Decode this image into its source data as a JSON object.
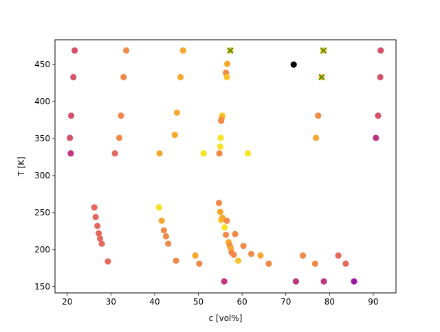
{
  "chart_data": {
    "type": "scatter",
    "title": "",
    "xlabel": "c [vol%]",
    "ylabel": "T [K]",
    "xlim": [
      17.2,
      95.2
    ],
    "ylim": [
      141.5,
      483.5
    ],
    "xticks": [
      "20",
      "30",
      "40",
      "50",
      "60",
      "70",
      "80",
      "90"
    ],
    "yticks": [
      "150",
      "200",
      "250",
      "300",
      "350",
      "400",
      "450"
    ],
    "grid": false,
    "legend": "none",
    "colors": {
      "purple": "#9c17a4",
      "magenta": "#c0357f",
      "rose": "#d5536a",
      "coral": "#e5685e",
      "orange": "#f08a48",
      "amber": "#f7a82f",
      "gold": "#fac42a",
      "yellow": "#f7e224",
      "black": "#000000",
      "cross": "#2f7d00"
    },
    "points": [
      {
        "x": 21.7,
        "y": 469,
        "color": "rose"
      },
      {
        "x": 33.5,
        "y": 469,
        "color": "orange"
      },
      {
        "x": 46.5,
        "y": 469,
        "color": "amber"
      },
      {
        "x": 57.3,
        "y": 469,
        "color": "gold"
      },
      {
        "x": 78.6,
        "y": 469,
        "color": "gold"
      },
      {
        "x": 91.7,
        "y": 469,
        "color": "rose"
      },
      {
        "x": 71.8,
        "y": 450,
        "color": "black"
      },
      {
        "x": 56.6,
        "y": 451,
        "color": "amber"
      },
      {
        "x": 21.4,
        "y": 433,
        "color": "rose"
      },
      {
        "x": 32.9,
        "y": 433,
        "color": "orange"
      },
      {
        "x": 45.9,
        "y": 433,
        "color": "amber"
      },
      {
        "x": 56.3,
        "y": 439,
        "color": "orange"
      },
      {
        "x": 56.5,
        "y": 433,
        "color": "gold"
      },
      {
        "x": 78.2,
        "y": 433,
        "color": "gold"
      },
      {
        "x": 91.6,
        "y": 433,
        "color": "rose"
      },
      {
        "x": 20.9,
        "y": 381,
        "color": "rose"
      },
      {
        "x": 32.3,
        "y": 381,
        "color": "orange"
      },
      {
        "x": 45.1,
        "y": 385,
        "color": "amber"
      },
      {
        "x": 55.5,
        "y": 381,
        "color": "gold"
      },
      {
        "x": 55.3,
        "y": 377,
        "color": "amber"
      },
      {
        "x": 55.2,
        "y": 374,
        "color": "orange"
      },
      {
        "x": 77.4,
        "y": 381,
        "color": "orange"
      },
      {
        "x": 91.1,
        "y": 381,
        "color": "rose"
      },
      {
        "x": 20.6,
        "y": 351,
        "color": "rose"
      },
      {
        "x": 31.9,
        "y": 351,
        "color": "orange"
      },
      {
        "x": 44.6,
        "y": 355,
        "color": "amber"
      },
      {
        "x": 55.1,
        "y": 351,
        "color": "yellow"
      },
      {
        "x": 55.0,
        "y": 339,
        "color": "yellow"
      },
      {
        "x": 76.9,
        "y": 351,
        "color": "amber"
      },
      {
        "x": 90.6,
        "y": 351,
        "color": "magenta"
      },
      {
        "x": 20.8,
        "y": 330,
        "color": "magenta"
      },
      {
        "x": 30.9,
        "y": 330,
        "color": "coral"
      },
      {
        "x": 41.1,
        "y": 330,
        "color": "amber"
      },
      {
        "x": 51.2,
        "y": 330,
        "color": "yellow"
      },
      {
        "x": 54.8,
        "y": 330,
        "color": "orange"
      },
      {
        "x": 61.3,
        "y": 330,
        "color": "yellow"
      },
      {
        "x": 26.2,
        "y": 257,
        "color": "coral"
      },
      {
        "x": 26.5,
        "y": 244,
        "color": "coral"
      },
      {
        "x": 26.9,
        "y": 232,
        "color": "coral"
      },
      {
        "x": 27.2,
        "y": 222,
        "color": "coral"
      },
      {
        "x": 27.5,
        "y": 215,
        "color": "coral"
      },
      {
        "x": 27.9,
        "y": 208,
        "color": "coral"
      },
      {
        "x": 29.3,
        "y": 184,
        "color": "coral"
      },
      {
        "x": 41.0,
        "y": 257,
        "color": "yellow"
      },
      {
        "x": 41.6,
        "y": 239,
        "color": "amber"
      },
      {
        "x": 42.1,
        "y": 226,
        "color": "orange"
      },
      {
        "x": 42.6,
        "y": 218,
        "color": "orange"
      },
      {
        "x": 43.1,
        "y": 208,
        "color": "orange"
      },
      {
        "x": 44.9,
        "y": 185,
        "color": "orange"
      },
      {
        "x": 49.3,
        "y": 192,
        "color": "amber"
      },
      {
        "x": 50.2,
        "y": 181,
        "color": "orange"
      },
      {
        "x": 54.7,
        "y": 263,
        "color": "orange"
      },
      {
        "x": 55.0,
        "y": 251,
        "color": "amber"
      },
      {
        "x": 55.2,
        "y": 240,
        "color": "gold"
      },
      {
        "x": 55.5,
        "y": 243,
        "color": "amber"
      },
      {
        "x": 56.0,
        "y": 230,
        "color": "yellow"
      },
      {
        "x": 56.5,
        "y": 239,
        "color": "orange"
      },
      {
        "x": 56.3,
        "y": 220,
        "color": "orange"
      },
      {
        "x": 56.9,
        "y": 210,
        "color": "amber"
      },
      {
        "x": 57.2,
        "y": 205,
        "color": "orange"
      },
      {
        "x": 57.4,
        "y": 202,
        "color": "amber"
      },
      {
        "x": 57.6,
        "y": 196,
        "color": "orange"
      },
      {
        "x": 58.1,
        "y": 193,
        "color": "orange"
      },
      {
        "x": 58.4,
        "y": 221,
        "color": "orange"
      },
      {
        "x": 59.1,
        "y": 185,
        "color": "gold"
      },
      {
        "x": 60.3,
        "y": 205,
        "color": "orange"
      },
      {
        "x": 62.1,
        "y": 194,
        "color": "orange"
      },
      {
        "x": 64.2,
        "y": 192,
        "color": "amber"
      },
      {
        "x": 66.1,
        "y": 181,
        "color": "orange"
      },
      {
        "x": 73.9,
        "y": 192,
        "color": "orange"
      },
      {
        "x": 76.7,
        "y": 181,
        "color": "orange"
      },
      {
        "x": 82.0,
        "y": 192,
        "color": "coral"
      },
      {
        "x": 83.7,
        "y": 181,
        "color": "coral"
      },
      {
        "x": 55.9,
        "y": 157,
        "color": "magenta"
      },
      {
        "x": 72.3,
        "y": 157,
        "color": "magenta"
      },
      {
        "x": 78.7,
        "y": 157,
        "color": "magenta"
      },
      {
        "x": 85.6,
        "y": 157,
        "color": "purple"
      }
    ],
    "crosses": [
      {
        "x": 57.3,
        "y": 469
      },
      {
        "x": 78.6,
        "y": 469
      },
      {
        "x": 78.2,
        "y": 433
      }
    ]
  }
}
